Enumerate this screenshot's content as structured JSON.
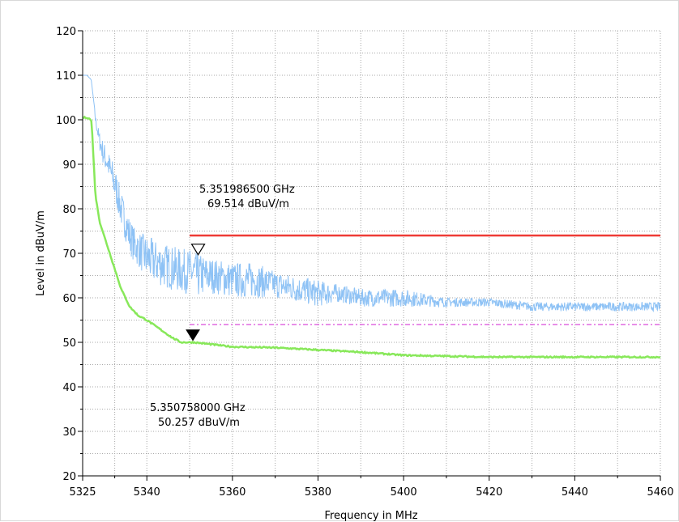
{
  "chart_data": {
    "type": "line",
    "title": "",
    "xlabel": "Frequency in MHz",
    "ylabel": "Level in dBuV/m",
    "xlim": [
      5325,
      5460
    ],
    "ylim": [
      20,
      120
    ],
    "grid": true,
    "x_ticks": [
      5325,
      5340,
      5360,
      5380,
      5400,
      5420,
      5440,
      5460
    ],
    "y_ticks": [
      20,
      30,
      40,
      50,
      60,
      70,
      80,
      90,
      100,
      110,
      120
    ],
    "x_tick_labels": [
      "5325",
      "5340",
      "5360",
      "5380",
      "5400",
      "5420",
      "5440",
      "5460"
    ],
    "y_tick_labels": [
      "20",
      "30",
      "40",
      "50",
      "60",
      "70",
      "80",
      "90",
      "100",
      "110",
      "120"
    ],
    "colors": {
      "peak": "#8ec2f5",
      "average": "#88e85a",
      "limit_peak": "#ee3b36",
      "limit_average": "#d94ad9",
      "grid": "#a8a8a8",
      "axis": "#000000"
    },
    "series": [
      {
        "key": "peak",
        "x": [
          5325,
          5326,
          5327,
          5327.5,
          5328,
          5329,
          5330,
          5331,
          5332,
          5333,
          5334,
          5335,
          5336,
          5337,
          5338,
          5340,
          5342,
          5345,
          5348,
          5350,
          5352,
          5355,
          5360,
          5365,
          5370,
          5375,
          5380,
          5385,
          5390,
          5395,
          5400,
          5410,
          5420,
          5430,
          5440,
          5450,
          5460
        ],
        "y": [
          110,
          110,
          109,
          105,
          100,
          95,
          92,
          90,
          87,
          84,
          80,
          77,
          74,
          72,
          71,
          69,
          68,
          67,
          66,
          66,
          65,
          65,
          64,
          64,
          63,
          62,
          61,
          61,
          60,
          60,
          60,
          59,
          59,
          58,
          58,
          58,
          58
        ],
        "noise": [
          0,
          0,
          0,
          0,
          1,
          2,
          3,
          3,
          4,
          4,
          4,
          4,
          4,
          4,
          4,
          5,
          5,
          5,
          5,
          5,
          5,
          4,
          4,
          4,
          3,
          3,
          3,
          2,
          2,
          2,
          2,
          1,
          1,
          1,
          1,
          1,
          1
        ]
      },
      {
        "key": "average",
        "x": [
          5325,
          5326,
          5327,
          5327.3,
          5327.6,
          5328,
          5329,
          5330,
          5331,
          5332,
          5333,
          5334,
          5335,
          5336,
          5338,
          5340,
          5343,
          5346,
          5348,
          5351,
          5360,
          5370,
          5380,
          5390,
          5400,
          5410,
          5420,
          5430,
          5440,
          5450,
          5460
        ],
        "y": [
          100.5,
          100.5,
          100,
          96,
          90,
          83,
          77,
          74,
          71,
          68,
          65,
          62,
          60,
          58,
          56,
          55,
          53,
          51,
          50,
          50,
          49,
          48.8,
          48.3,
          47.8,
          47.1,
          46.9,
          46.7,
          46.7,
          46.7,
          46.7,
          46.7
        ]
      }
    ],
    "limits": [
      {
        "key": "limit_peak",
        "x": [
          5350,
          5460
        ],
        "y": [
          74,
          74
        ],
        "style": "solid"
      },
      {
        "key": "limit_average",
        "x": [
          5350,
          5460
        ],
        "y": [
          54,
          54
        ],
        "style": "dashdot"
      }
    ],
    "markers": [
      {
        "key": "peak",
        "shape": "hollow-triangle",
        "x": 5351.9865,
        "y": 69.514,
        "freq_label": "5.351986500 GHz",
        "level_label": "69.514 dBuV/m"
      },
      {
        "key": "average",
        "shape": "filled-triangle",
        "x": 5350.758,
        "y": 50.257,
        "freq_label": "5.350758000 GHz",
        "level_label": "50.257 dBuV/m"
      }
    ]
  }
}
